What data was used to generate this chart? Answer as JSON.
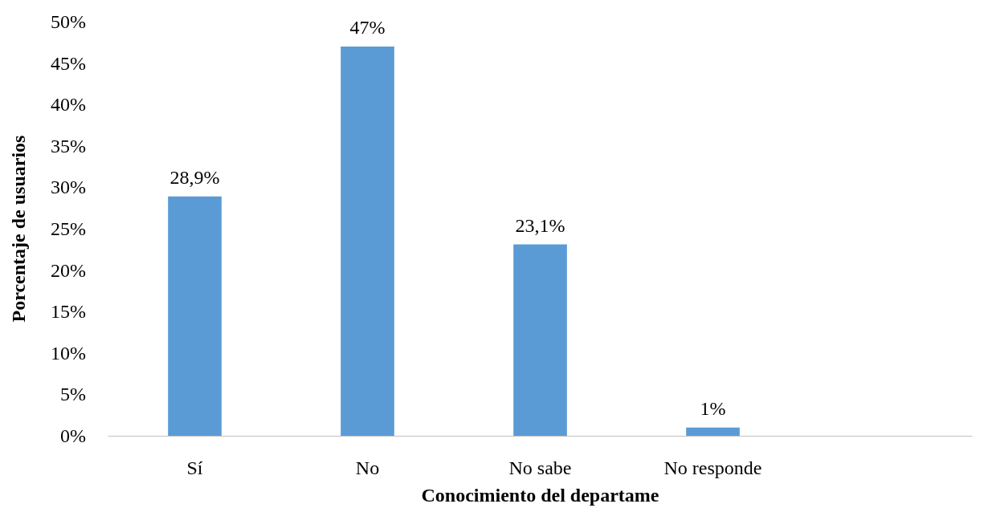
{
  "chart_data": {
    "type": "bar",
    "xlabel": "Conocimiento del departame",
    "ylabel": "Porcentaje de usuarios",
    "categories": [
      "Sí",
      "No",
      "No sabe",
      "No responde",
      null
    ],
    "values": [
      28.9,
      47,
      23.1,
      1,
      null
    ],
    "value_labels": [
      "28,9%",
      "47%",
      "23,1%",
      "1%",
      null
    ],
    "color": "#5b9bd5",
    "ylim": [
      0,
      50
    ],
    "yticks": [
      {
        "value": 0,
        "label": "0%"
      },
      {
        "value": 5,
        "label": "5%"
      },
      {
        "value": 10,
        "label": "10%"
      },
      {
        "value": 15,
        "label": "15%"
      },
      {
        "value": 20,
        "label": "20%"
      },
      {
        "value": 25,
        "label": "25%"
      },
      {
        "value": 30,
        "label": "30%"
      },
      {
        "value": 35,
        "label": "35%"
      },
      {
        "value": 40,
        "label": "40%"
      },
      {
        "value": 45,
        "label": "45%"
      },
      {
        "value": 50,
        "label": "50%"
      }
    ],
    "grid": false
  }
}
